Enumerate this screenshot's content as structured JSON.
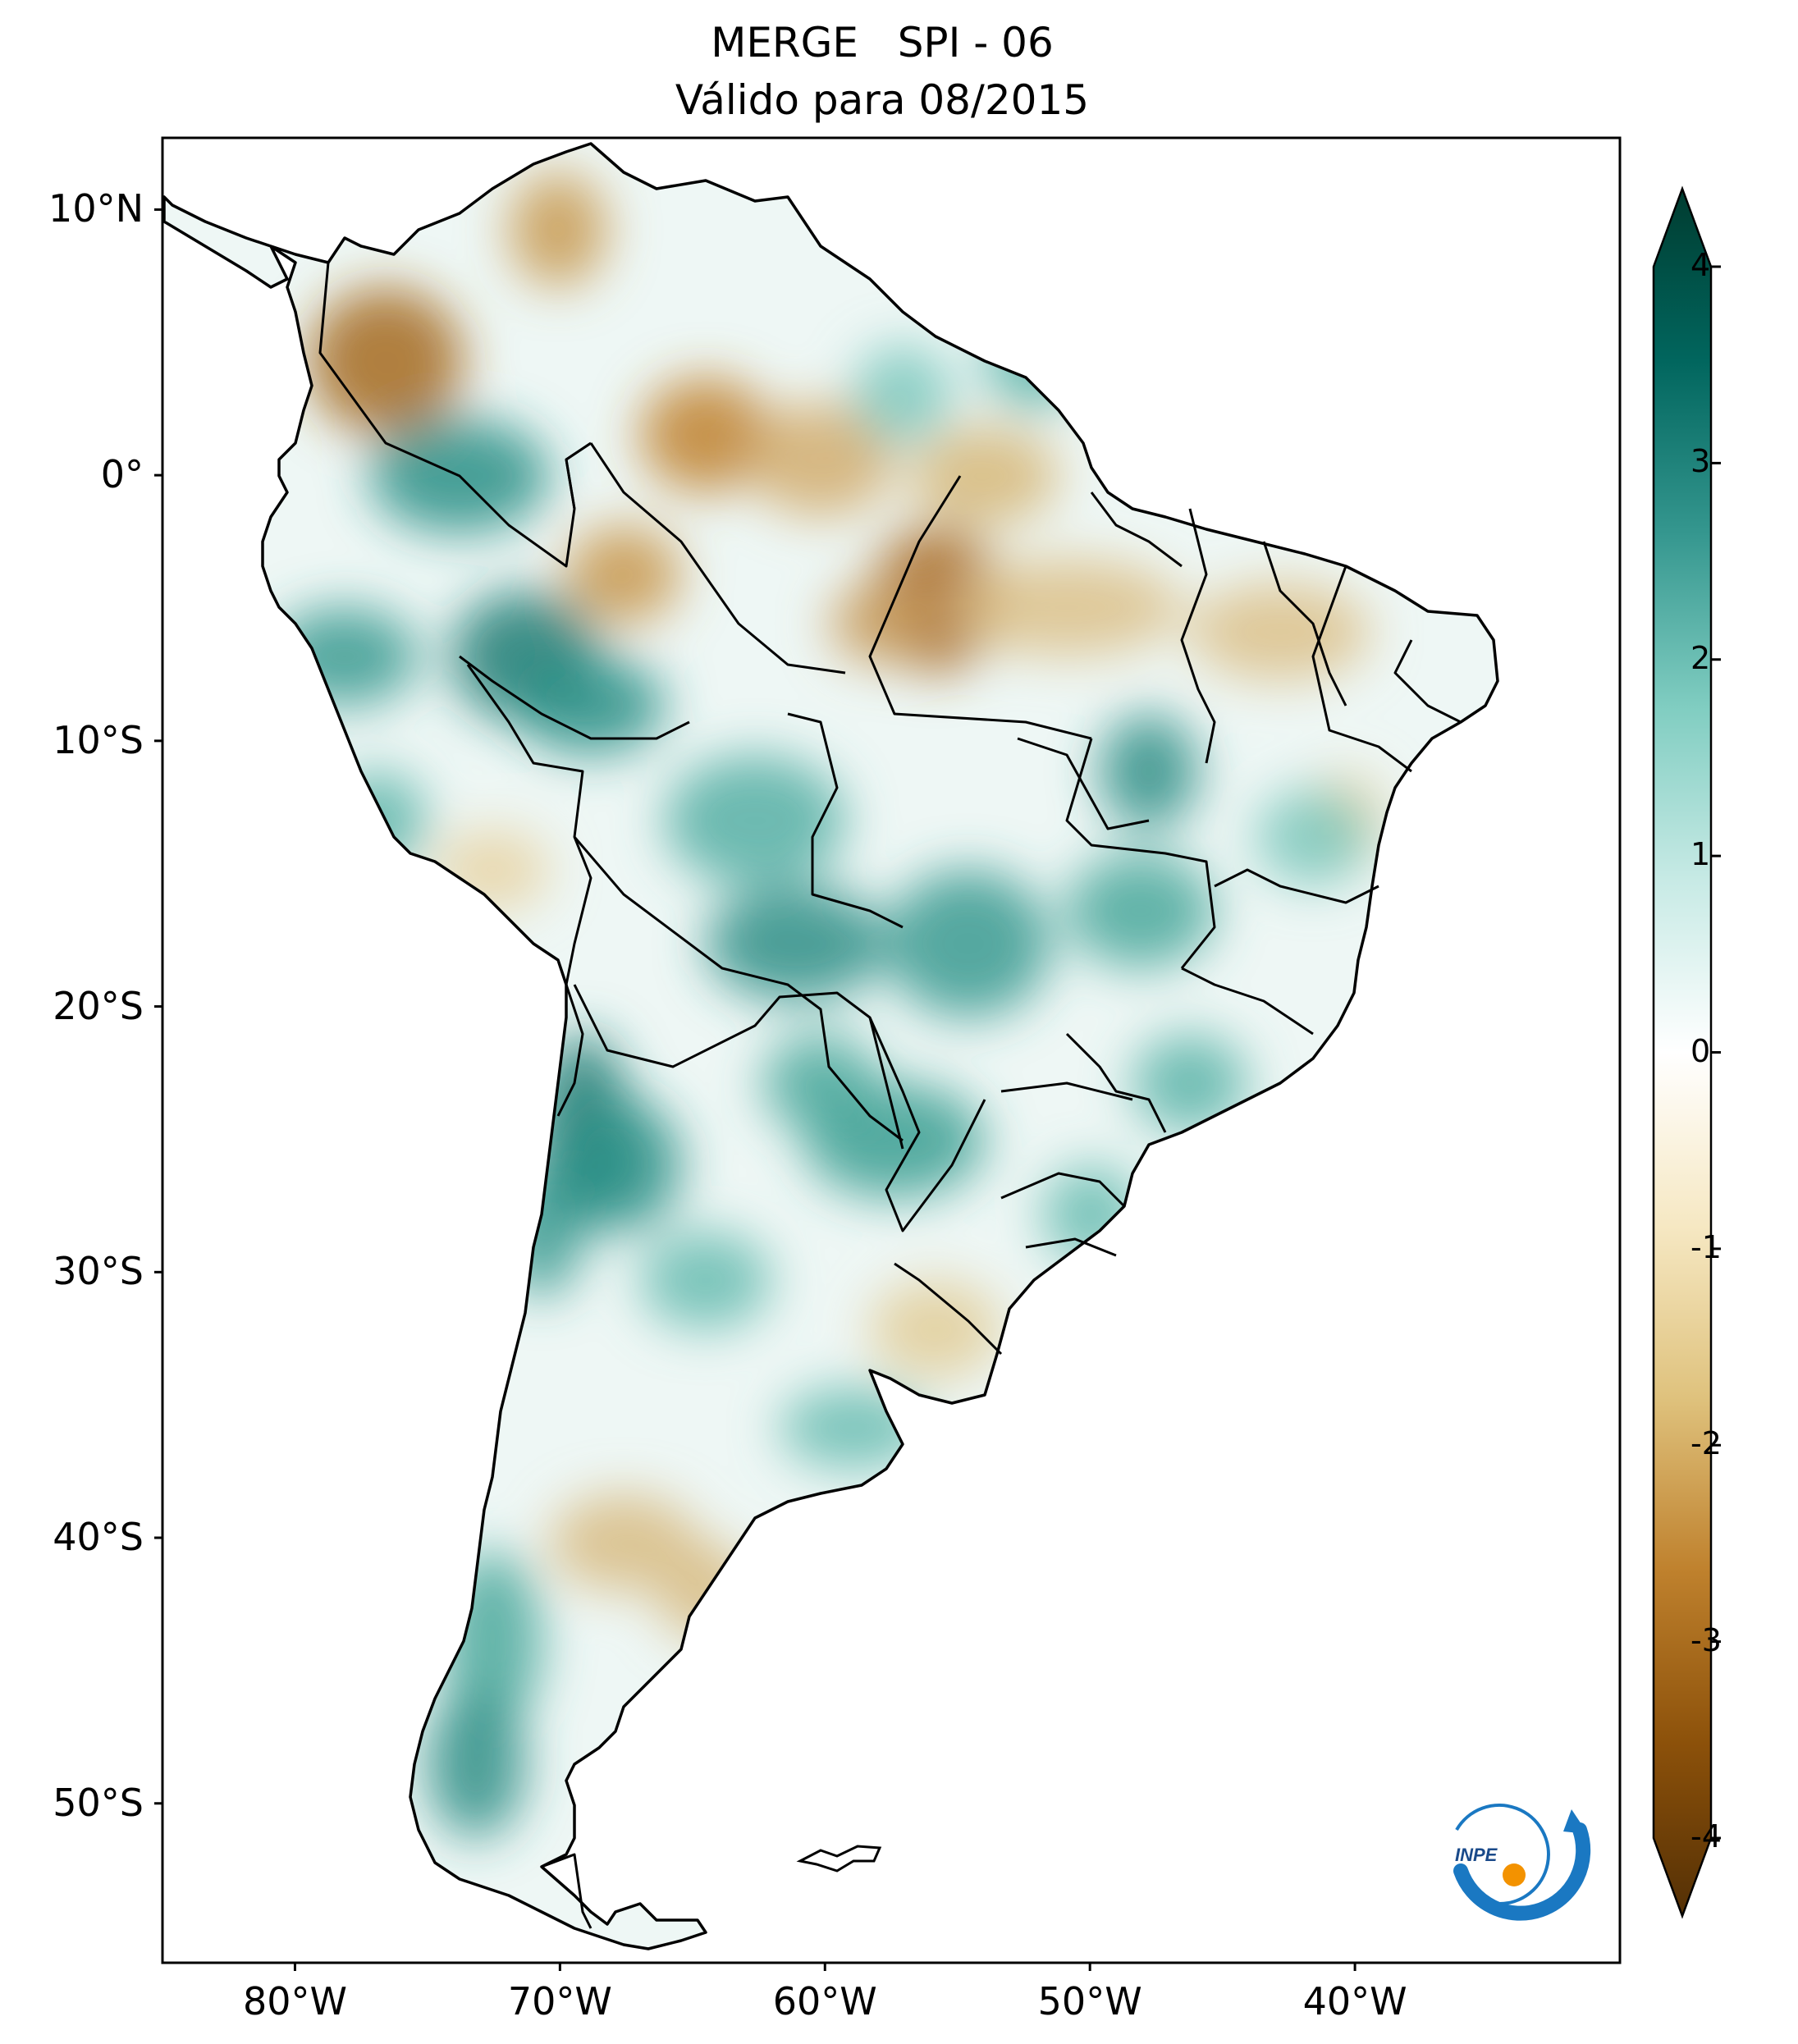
{
  "title": {
    "line1": "MERGE   SPI - 06",
    "line2": "Válido para 08/2015"
  },
  "axes": {
    "lat_ticks": [
      {
        "value": 10,
        "label": "10°N"
      },
      {
        "value": 0,
        "label": "0°"
      },
      {
        "value": -10,
        "label": "10°S"
      },
      {
        "value": -20,
        "label": "20°S"
      },
      {
        "value": -30,
        "label": "30°S"
      },
      {
        "value": -40,
        "label": "40°S"
      },
      {
        "value": -50,
        "label": "50°S"
      }
    ],
    "lon_ticks": [
      {
        "value": -80,
        "label": "80°W"
      },
      {
        "value": -70,
        "label": "70°W"
      },
      {
        "value": -60,
        "label": "60°W"
      },
      {
        "value": -50,
        "label": "50°W"
      },
      {
        "value": -40,
        "label": "40°W"
      }
    ],
    "lon_range": [
      -85,
      -30
    ],
    "lat_range": [
      -56,
      12.7
    ]
  },
  "colorbar": {
    "colormap": "BrBG",
    "range": [
      -4,
      4
    ],
    "extend": "both",
    "ticks": [
      "4",
      "3",
      "2",
      "1",
      "0",
      "-1",
      "-2",
      "-3",
      "-4"
    ],
    "stops": [
      "#543005",
      "#8c510a",
      "#bf812d",
      "#dfc27d",
      "#f6e8c3",
      "#ffffff",
      "#c7eae5",
      "#80cdc1",
      "#35978f",
      "#01665e",
      "#003c30"
    ]
  },
  "logo": {
    "text": "INPE",
    "colors": {
      "ring": "#1a78c2",
      "sun": "#f39200"
    }
  }
}
